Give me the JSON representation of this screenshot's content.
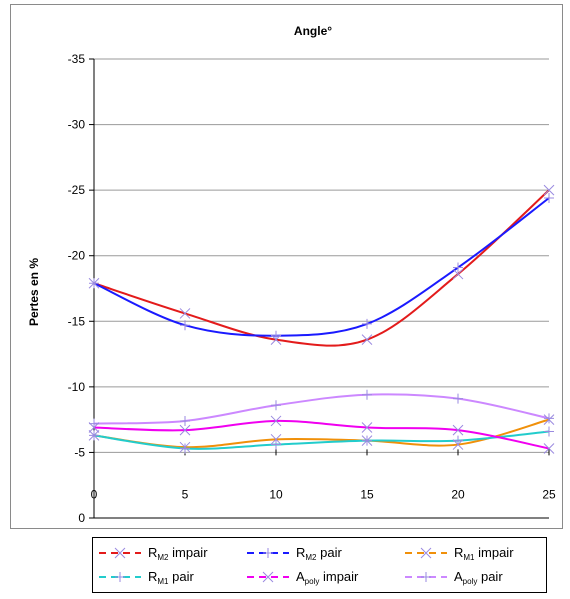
{
  "chart_data": {
    "type": "line",
    "title": "Angle°",
    "ylabel": "Pertes en %",
    "xlabel": "",
    "x": [
      0,
      5,
      10,
      15,
      20,
      25
    ],
    "x_ticks": [
      "0",
      "5",
      "10",
      "15",
      "20",
      "25"
    ],
    "y_ticks": [
      "-35",
      "-30",
      "-25",
      "-20",
      "-15",
      "-10",
      "-5",
      "0"
    ],
    "ylim": [
      0,
      -35
    ],
    "y_axis_reversed": true,
    "grid": true,
    "legend_position": "bottom",
    "series": [
      {
        "name": "R",
        "sub": "M2",
        "suffix": " impair",
        "color": "#e31b1b",
        "marker": "x",
        "values": [
          -17.9,
          -15.6,
          -13.6,
          -13.6,
          -18.6,
          -25.0
        ]
      },
      {
        "name": "R",
        "sub": "M2",
        "suffix": " pair",
        "color": "#1a1aff",
        "marker": "plus",
        "values": [
          -17.9,
          -14.7,
          -13.9,
          -14.8,
          -19.1,
          -24.4
        ]
      },
      {
        "name": "R",
        "sub": "M1",
        "suffix": " impair",
        "color": "#f0900a",
        "marker": "x",
        "values": [
          -6.3,
          -5.4,
          -6.0,
          -5.9,
          -5.6,
          -7.5
        ]
      },
      {
        "name": "R",
        "sub": "M1",
        "suffix": " pair",
        "color": "#22cccc",
        "marker": "plus",
        "values": [
          -6.3,
          -5.3,
          -5.6,
          -5.9,
          -5.9,
          -6.6
        ]
      },
      {
        "name": "A",
        "sub": "poly",
        "suffix": " impair",
        "color": "#f000f0",
        "marker": "x",
        "values": [
          -6.9,
          -6.7,
          -7.4,
          -6.9,
          -6.7,
          -5.3
        ]
      },
      {
        "name": "A",
        "sub": "poly",
        "suffix": " pair",
        "color": "#cc88ff",
        "marker": "plus",
        "values": [
          -7.2,
          -7.4,
          -8.6,
          -9.4,
          -9.1,
          -7.6
        ]
      }
    ]
  }
}
